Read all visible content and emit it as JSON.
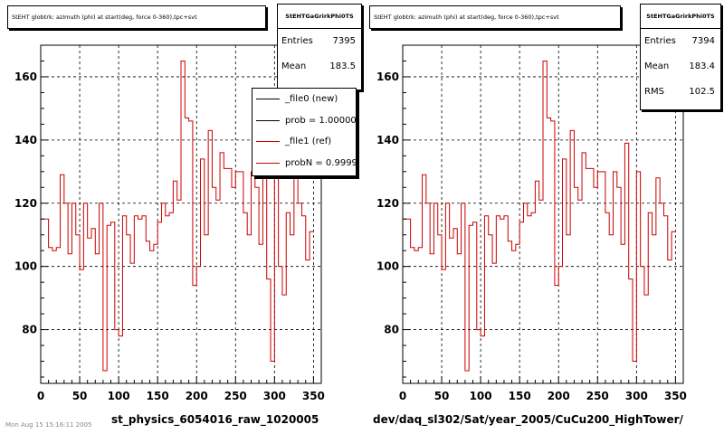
{
  "left": {
    "title": "StEHT globtrk: azimuth (phi) at start(deg, force 0-360),tpc+svt",
    "stats": {
      "name": "StEHTGaGrirkPhi0TS",
      "entries_label": "Entries",
      "entries": "7395",
      "mean_label": "Mean",
      "mean": "183.5"
    },
    "legend": [
      {
        "label": "_file0 (new)",
        "color": "#000000"
      },
      {
        "label": "prob = 1.000000",
        "color": "#000000"
      },
      {
        "label": "_file1 (ref)",
        "color": "#cc0000"
      },
      {
        "label": "probN = 0.999977",
        "color": "#cc0000"
      }
    ],
    "xtitle": "st_physics_6054016_raw_1020005"
  },
  "right": {
    "title": "StEHT globtrk: azimuth (phi) at start(deg, force 0-360),tpc+svt",
    "stats": {
      "name": "StEHTGaGrirkPhi0TS",
      "entries_label": "Entries",
      "entries": "7394",
      "mean_label": "Mean",
      "mean": "183.4",
      "rms_label": "RMS",
      "rms": "102.5"
    },
    "xtitle": "dev/daq_sl302/Sat/year_2005/CuCu200_HighTower/"
  },
  "stamp": "Mon Aug 15 15:16:11 2005",
  "chart_data": [
    {
      "type": "line",
      "subtype": "histogram-step",
      "title": "StEHT globtrk: azimuth (phi) at start(deg, force 0-360),tpc+svt",
      "xlabel": "st_physics_6054016_raw_1020005",
      "ylabel": "",
      "xlim": [
        0,
        360
      ],
      "ylim": [
        63,
        170
      ],
      "xticks": [
        0,
        50,
        100,
        150,
        200,
        250,
        300,
        350
      ],
      "yticks": [
        80,
        100,
        120,
        140,
        160
      ],
      "grid": true,
      "bin_width": 5,
      "series": [
        {
          "name": "_file1 (ref)",
          "color": "#cc0000",
          "values": [
            115,
            115,
            106,
            105,
            106,
            129,
            120,
            104,
            120,
            110,
            99,
            120,
            109,
            112,
            104,
            120,
            67,
            113,
            114,
            80,
            78,
            116,
            110,
            101,
            116,
            115,
            116,
            108,
            105,
            107,
            114,
            120,
            116,
            117,
            127,
            121,
            165,
            147,
            146,
            94,
            100,
            134,
            110,
            143,
            125,
            121,
            136,
            131,
            131,
            125,
            130,
            130,
            117,
            110,
            130,
            125,
            107,
            139,
            96,
            70,
            130,
            100,
            91,
            117,
            110,
            128,
            120,
            116,
            102,
            111
          ]
        }
      ]
    },
    {
      "type": "line",
      "subtype": "histogram-step",
      "title": "StEHT globtrk: azimuth (phi) at start(deg, force 0-360),tpc+svt",
      "xlabel": "dev/daq_sl302/Sat/year_2005/CuCu200_HighTower/",
      "ylabel": "",
      "xlim": [
        0,
        360
      ],
      "ylim": [
        63,
        170
      ],
      "xticks": [
        0,
        50,
        100,
        150,
        200,
        250,
        300,
        350
      ],
      "yticks": [
        80,
        100,
        120,
        140,
        160
      ],
      "grid": true,
      "bin_width": 5,
      "series": [
        {
          "name": "_file1 (ref)",
          "color": "#cc0000",
          "values": [
            115,
            115,
            106,
            105,
            106,
            129,
            120,
            104,
            120,
            110,
            99,
            120,
            109,
            112,
            104,
            120,
            67,
            113,
            114,
            80,
            78,
            116,
            110,
            101,
            116,
            115,
            116,
            108,
            105,
            107,
            114,
            120,
            116,
            117,
            127,
            121,
            165,
            147,
            146,
            94,
            100,
            134,
            110,
            143,
            125,
            121,
            136,
            131,
            131,
            125,
            130,
            130,
            117,
            110,
            130,
            125,
            107,
            139,
            96,
            70,
            130,
            100,
            91,
            117,
            110,
            128,
            120,
            116,
            102,
            111
          ]
        }
      ]
    }
  ]
}
